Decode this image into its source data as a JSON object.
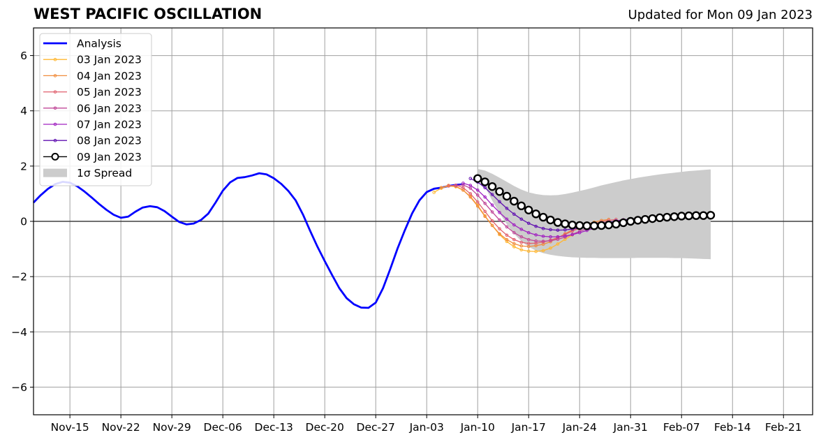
{
  "chart_data": {
    "type": "line",
    "title": "WEST PACIFIC OSCILLATION",
    "subtitle": "Updated for Mon 09 Jan 2023",
    "xlabel": "",
    "ylabel": "",
    "x_ticks": [
      "Nov-15",
      "Nov-22",
      "Nov-29",
      "Dec-06",
      "Dec-13",
      "Dec-20",
      "Dec-27",
      "Jan-03",
      "Jan-10",
      "Jan-17",
      "Jan-24",
      "Jan-31",
      "Feb-07",
      "Feb-14",
      "Feb-21"
    ],
    "xlim": [
      "2022-11-10",
      "2023-02-25"
    ],
    "y_ticks": [
      -6,
      -4,
      -2,
      0,
      2,
      4,
      6
    ],
    "ylim": [
      -7,
      7
    ],
    "grid": true,
    "legend_position": "top-left",
    "analysis": {
      "name": "Analysis",
      "color": "#0000ff",
      "start": "2022-11-10",
      "values": [
        0.68,
        0.95,
        1.18,
        1.35,
        1.43,
        1.4,
        1.27,
        1.08,
        0.86,
        0.63,
        0.42,
        0.24,
        0.13,
        0.17,
        0.35,
        0.5,
        0.55,
        0.51,
        0.37,
        0.17,
        -0.02,
        -0.11,
        -0.08,
        0.05,
        0.28,
        0.68,
        1.11,
        1.41,
        1.57,
        1.6,
        1.66,
        1.74,
        1.7,
        1.56,
        1.36,
        1.1,
        0.76,
        0.25,
        -0.35,
        -0.92,
        -1.44,
        -1.94,
        -2.42,
        -2.78,
        -3.0,
        -3.12,
        -3.13,
        -2.94,
        -2.42,
        -1.72,
        -0.98,
        -0.32,
        0.29,
        0.76,
        1.06,
        1.18,
        1.22,
        1.28,
        1.32,
        1.34
      ]
    },
    "forecasts": [
      {
        "name": "03 Jan 2023",
        "color": "#ffb732",
        "start": "2023-01-04",
        "values": [
          1.05,
          1.2,
          1.28,
          1.25,
          1.13,
          0.9,
          0.58,
          0.2,
          -0.15,
          -0.48,
          -0.73,
          -0.92,
          -1.03,
          -1.08,
          -1.09,
          -1.06,
          -0.97,
          -0.82,
          -0.65,
          -0.49
        ]
      },
      {
        "name": "04 Jan 2023",
        "color": "#f08c3c",
        "start": "2023-01-05",
        "values": [
          1.22,
          1.3,
          1.27,
          1.13,
          0.88,
          0.55,
          0.18,
          -0.15,
          -0.45,
          -0.66,
          -0.81,
          -0.89,
          -0.91,
          -0.88,
          -0.83,
          -0.74,
          -0.6,
          -0.45,
          -0.31,
          -0.19,
          -0.1,
          -0.03,
          0.03,
          0.07
        ]
      },
      {
        "name": "05 Jan 2023",
        "color": "#e0606e",
        "start": "2023-01-06",
        "values": [
          1.28,
          1.31,
          1.22,
          1.0,
          0.7,
          0.36,
          0.02,
          -0.27,
          -0.5,
          -0.66,
          -0.76,
          -0.8,
          -0.79,
          -0.75,
          -0.68,
          -0.59,
          -0.47,
          -0.35,
          -0.24,
          -0.15,
          -0.08,
          -0.02,
          0.03,
          0.07
        ]
      },
      {
        "name": "06 Jan 2023",
        "color": "#c04898",
        "start": "2023-01-07",
        "values": [
          1.3,
          1.32,
          1.2,
          0.95,
          0.65,
          0.34,
          0.05,
          -0.2,
          -0.41,
          -0.56,
          -0.66,
          -0.71,
          -0.72,
          -0.7,
          -0.65,
          -0.57,
          -0.47,
          -0.36,
          -0.26,
          -0.17,
          -0.1,
          -0.04,
          0.02,
          0.06
        ]
      },
      {
        "name": "07 Jan 2023",
        "color": "#a020c0",
        "start": "2023-01-08",
        "values": [
          1.38,
          1.3,
          1.13,
          0.88,
          0.59,
          0.32,
          0.08,
          -0.13,
          -0.29,
          -0.41,
          -0.49,
          -0.54,
          -0.56,
          -0.56,
          -0.53,
          -0.48,
          -0.41,
          -0.33,
          -0.25,
          -0.17,
          -0.1,
          -0.04,
          0.01,
          0.05
        ]
      },
      {
        "name": "08 Jan 2023",
        "color": "#6010b0",
        "start": "2023-01-09",
        "values": [
          1.55,
          1.42,
          1.22,
          0.97,
          0.71,
          0.47,
          0.26,
          0.08,
          -0.07,
          -0.18,
          -0.26,
          -0.3,
          -0.32,
          -0.31,
          -0.28,
          -0.24,
          -0.19,
          -0.13,
          -0.08,
          -0.03,
          0.01,
          0.05,
          0.08,
          0.1
        ]
      },
      {
        "name": "09 Jan 2023",
        "color": "#000000",
        "start": "2023-01-10",
        "values": [
          1.55,
          1.43,
          1.26,
          1.08,
          0.91,
          0.73,
          0.56,
          0.41,
          0.27,
          0.15,
          0.05,
          -0.04,
          -0.09,
          -0.13,
          -0.15,
          -0.16,
          -0.16,
          -0.15,
          -0.13,
          -0.1,
          -0.05,
          0.0,
          0.04,
          0.07,
          0.1,
          0.13,
          0.15,
          0.17,
          0.19,
          0.2,
          0.21,
          0.21,
          0.22
        ]
      }
    ],
    "spread": {
      "name": "1σ Spread",
      "color": "#cccccc",
      "start": "2023-01-10",
      "upper": [
        1.9,
        1.84,
        1.72,
        1.58,
        1.43,
        1.28,
        1.15,
        1.05,
        0.99,
        0.95,
        0.94,
        0.95,
        0.99,
        1.04,
        1.1,
        1.16,
        1.23,
        1.3,
        1.36,
        1.42,
        1.48,
        1.53,
        1.58,
        1.62,
        1.66,
        1.7,
        1.73,
        1.76,
        1.79,
        1.82,
        1.84,
        1.86,
        1.88
      ],
      "lower": [
        1.75,
        1.25,
        0.75,
        0.3,
        -0.1,
        -0.45,
        -0.72,
        -0.92,
        -1.06,
        -1.15,
        -1.21,
        -1.25,
        -1.28,
        -1.3,
        -1.31,
        -1.32,
        -1.32,
        -1.33,
        -1.33,
        -1.33,
        -1.33,
        -1.33,
        -1.32,
        -1.32,
        -1.32,
        -1.32,
        -1.32,
        -1.33,
        -1.33,
        -1.34,
        -1.35,
        -1.36,
        -1.37
      ]
    }
  }
}
